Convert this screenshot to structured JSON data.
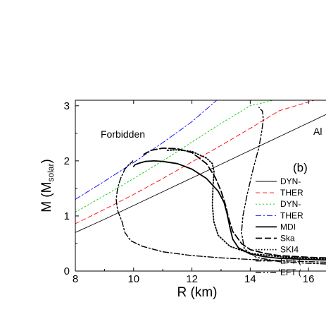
{
  "chart_data": {
    "type": "line",
    "title": "",
    "xlabel": "R (km)",
    "ylabel_main": "M (M",
    "ylabel_sub": "solar",
    "ylabel_close": ")",
    "xlim": [
      8,
      16.6
    ],
    "ylim": [
      0,
      3.1
    ],
    "xticks": [
      8,
      10,
      12,
      14,
      16
    ],
    "yticks": [
      0,
      1,
      2,
      3
    ],
    "grid": false,
    "legend_position": "right",
    "annotations": {
      "forbidden": "Forbidden",
      "allowed": "Al",
      "panel": "(b)"
    },
    "series": [
      {
        "name": "DYN-",
        "color": "#000000",
        "dash": "solid",
        "width": 0.9,
        "x": [
          8,
          9,
          10,
          11,
          12,
          13,
          14,
          15,
          16,
          16.6
        ],
        "y": [
          0.7,
          0.94,
          1.19,
          1.44,
          1.69,
          1.94,
          2.19,
          2.44,
          2.69,
          2.84
        ]
      },
      {
        "name": "THER",
        "color": "#ff0000",
        "dash": "dashed",
        "width": 0.9,
        "x": [
          8,
          9,
          10,
          11,
          12,
          13,
          14,
          15,
          16.2
        ],
        "y": [
          0.86,
          1.12,
          1.39,
          1.68,
          1.98,
          2.28,
          2.59,
          2.91,
          3.1
        ]
      },
      {
        "name": "DYN-",
        "color": "#00cc00",
        "dash": "dotted",
        "width": 0.9,
        "x": [
          8,
          9,
          10,
          11,
          12,
          13,
          14,
          14.8
        ],
        "y": [
          1.07,
          1.37,
          1.68,
          2.0,
          2.34,
          2.68,
          3.0,
          3.1
        ]
      },
      {
        "name": "THER",
        "color": "#0000ff",
        "dash": "dashdot",
        "width": 0.9,
        "x": [
          8,
          9,
          10,
          11,
          12,
          12.85
        ],
        "y": [
          1.3,
          1.63,
          1.97,
          2.33,
          2.71,
          3.1
        ]
      },
      {
        "name": "MDI",
        "color": "#000000",
        "dash": "solid",
        "width": 1.8,
        "x": [
          16.6,
          16.0,
          15.0,
          14.5,
          14.0,
          13.6,
          13.4,
          13.3,
          13.2,
          13.1,
          12.9,
          12.5,
          12.0,
          11.5,
          11.0,
          10.7,
          10.4,
          10.2,
          10.05,
          10.0
        ],
        "y": [
          0.2,
          0.21,
          0.23,
          0.26,
          0.31,
          0.42,
          0.58,
          0.8,
          1.05,
          1.25,
          1.45,
          1.68,
          1.85,
          1.95,
          1.99,
          2.0,
          1.99,
          1.96,
          1.93,
          1.9
        ]
      },
      {
        "name": "Ska",
        "color": "#000000",
        "dash": "longdash",
        "width": 1.8,
        "x": [
          16.6,
          16.0,
          15.0,
          14.5,
          14.0,
          13.7,
          13.4,
          13.25,
          13.15,
          13.0,
          12.8,
          12.5,
          12.0,
          11.5,
          11.0,
          10.6,
          10.35
        ],
        "y": [
          0.24,
          0.25,
          0.28,
          0.32,
          0.39,
          0.5,
          0.72,
          0.98,
          1.2,
          1.45,
          1.7,
          1.95,
          2.15,
          2.22,
          2.23,
          2.19,
          2.12
        ]
      },
      {
        "name": "SKI4",
        "color": "#000000",
        "dash": "densedot",
        "width": 1.8,
        "x": [
          16.6,
          16.0,
          15.0,
          14.0,
          13.3,
          12.9,
          12.75,
          12.7,
          12.72,
          12.76,
          12.7,
          12.5,
          12.0,
          11.5,
          11.1
        ],
        "y": [
          0.22,
          0.23,
          0.26,
          0.32,
          0.45,
          0.65,
          0.9,
          1.2,
          1.5,
          1.8,
          1.95,
          2.05,
          2.17,
          2.2,
          2.19
        ]
      },
      {
        "name": "EFT (",
        "color": "#000000",
        "dash": "dashdot",
        "width": 1.4,
        "x": [
          16.6,
          15.0,
          14.0,
          13.0,
          12.0,
          11.0,
          10.3,
          9.9,
          9.7,
          9.6,
          9.45,
          9.4,
          9.45,
          9.55,
          9.7,
          9.85,
          9.95,
          9.97
        ],
        "y": [
          0.16,
          0.19,
          0.21,
          0.24,
          0.28,
          0.35,
          0.45,
          0.55,
          0.7,
          0.9,
          1.1,
          1.3,
          1.5,
          1.68,
          1.85,
          1.94,
          1.98,
          2.0
        ]
      },
      {
        "name": "EFT (",
        "color": "#000000",
        "dash": "dashdotdot",
        "width": 1.4,
        "x": [
          16.6,
          16.0,
          15.0,
          14.2,
          13.8,
          13.7,
          13.75,
          13.9,
          14.1,
          14.3,
          14.4,
          14.45,
          14.42,
          14.3
        ],
        "y": [
          0.13,
          0.14,
          0.17,
          0.25,
          0.4,
          0.7,
          1.0,
          1.4,
          1.85,
          2.25,
          2.55,
          2.75,
          2.9,
          2.97
        ]
      }
    ]
  }
}
